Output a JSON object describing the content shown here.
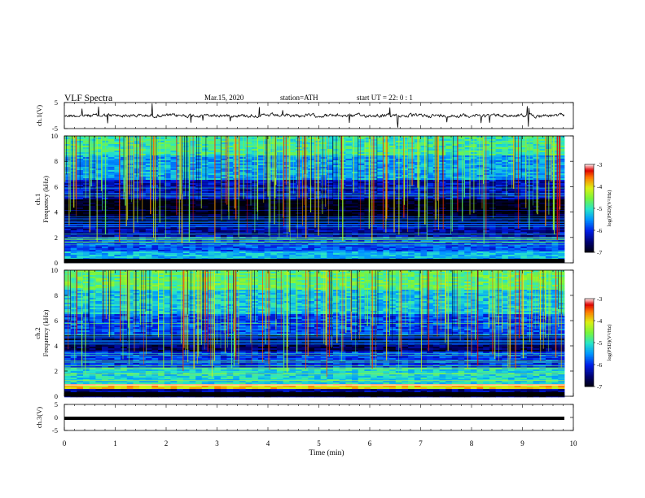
{
  "header": {
    "title": "VLF  Spectra",
    "date": "Mar.15, 2020",
    "station": "station=ATH",
    "start_time": "start  UT  =    22: 0   : 1"
  },
  "chart_data": [
    {
      "type": "line",
      "panel": "ch1-waveform",
      "ylabel": "ch.1(V)",
      "ylim": [
        -5,
        5
      ],
      "yticks": [
        "5",
        "-5"
      ],
      "xlim": [
        0,
        10
      ],
      "level": 0.0
    },
    {
      "type": "heatmap",
      "panel": "ch1-spectrogram",
      "ylabel_channel": "ch.1",
      "ylabel": "Frequency  (kHz)",
      "ylim": [
        0,
        10
      ],
      "yticks": [
        "0",
        "2",
        "4",
        "6",
        "8",
        "10"
      ],
      "xlim": [
        0,
        10
      ],
      "colorbar": {
        "label": "log(PSD)(V²/Hz)",
        "range": [
          -7,
          -3
        ],
        "ticks": [
          "-3",
          "-4",
          "-5",
          "-6",
          "-7"
        ]
      },
      "bands": [
        {
          "from": 0.0,
          "to": 0.3,
          "level": -6.9
        },
        {
          "from": 0.3,
          "to": 0.9,
          "level": -5.3
        },
        {
          "from": 0.9,
          "to": 2.1,
          "level": -5.8
        },
        {
          "from": 2.1,
          "to": 2.9,
          "level": -6.3
        },
        {
          "from": 2.9,
          "to": 3.9,
          "level": -6.8
        },
        {
          "from": 3.9,
          "to": 5.0,
          "level": -7.0
        },
        {
          "from": 5.0,
          "to": 6.5,
          "level": -6.2
        },
        {
          "from": 6.5,
          "to": 8.5,
          "level": -5.4
        },
        {
          "from": 8.5,
          "to": 10.0,
          "level": -4.9
        }
      ]
    },
    {
      "type": "heatmap",
      "panel": "ch2-spectrogram",
      "ylabel_channel": "ch.2",
      "ylabel": "Frequency  (kHz)",
      "ylim": [
        0,
        10
      ],
      "yticks": [
        "0",
        "2",
        "4",
        "6",
        "8",
        "10"
      ],
      "xlim": [
        0,
        10
      ],
      "colorbar": {
        "label": "log(PSD)(V²/Hz)",
        "range": [
          -7,
          -3
        ],
        "ticks": [
          "-3",
          "-4",
          "-5",
          "-6",
          "-7"
        ]
      },
      "bands": [
        {
          "from": 0.0,
          "to": 0.6,
          "level": -6.4
        },
        {
          "from": 0.6,
          "to": 1.0,
          "level": -3.9
        },
        {
          "from": 1.0,
          "to": 2.2,
          "level": -5.1
        },
        {
          "from": 2.2,
          "to": 3.5,
          "level": -5.9
        },
        {
          "from": 3.5,
          "to": 4.8,
          "level": -6.6
        },
        {
          "from": 4.8,
          "to": 6.5,
          "level": -5.8
        },
        {
          "from": 6.5,
          "to": 8.5,
          "level": -5.2
        },
        {
          "from": 8.5,
          "to": 10.0,
          "level": -4.7
        }
      ]
    },
    {
      "type": "line",
      "panel": "ch3-waveform",
      "ylabel": "ch.3(V)",
      "ylim": [
        -5,
        5
      ],
      "yticks": [
        "5",
        "0",
        "-5"
      ],
      "xlim": [
        0,
        10
      ],
      "level": -0.3,
      "xlabel": "Time  (min)",
      "xticks": [
        "0",
        "1",
        "2",
        "3",
        "4",
        "5",
        "6",
        "7",
        "8",
        "9",
        "10"
      ]
    }
  ]
}
